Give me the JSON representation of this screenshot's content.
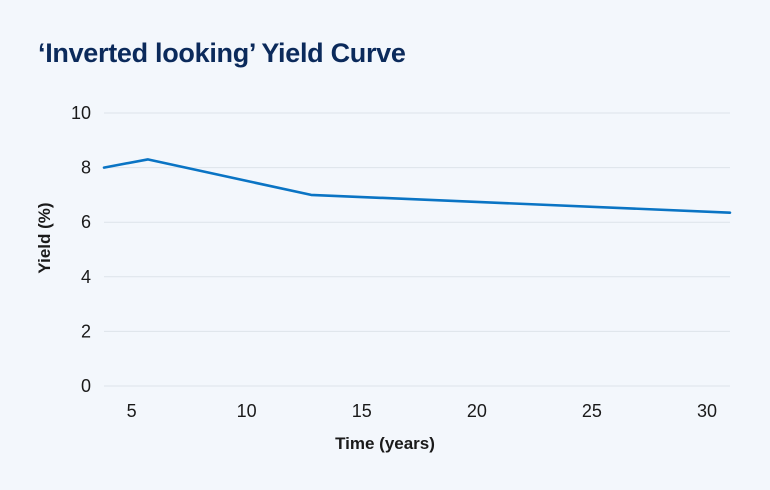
{
  "chart_data": {
    "type": "line",
    "title": "‘Inverted looking’ Yield Curve",
    "xlabel": "Time (years)",
    "ylabel": "Yield (%)",
    "xlim": [
      3.8,
      31
    ],
    "ylim": [
      0,
      10
    ],
    "xticks": [
      5,
      10,
      15,
      20,
      25,
      30
    ],
    "yticks": [
      0,
      2,
      4,
      6,
      8,
      10
    ],
    "grid": true,
    "series": [
      {
        "name": "Yield",
        "color": "#0a74c4",
        "x": [
          3.8,
          5.7,
          12.8,
          31
        ],
        "y": [
          8.0,
          8.3,
          7.0,
          6.35
        ]
      }
    ]
  }
}
